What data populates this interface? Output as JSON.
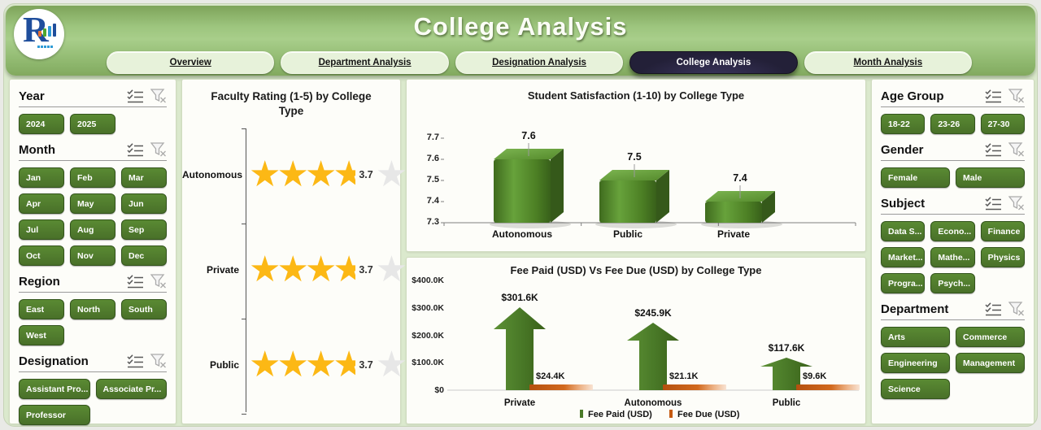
{
  "header": {
    "title": "College Analysis",
    "logo_letter": "R",
    "tabs": [
      {
        "label": "Overview",
        "active": false
      },
      {
        "label": "Department Analysis",
        "active": false
      },
      {
        "label": "Designation Analysis",
        "active": false
      },
      {
        "label": "College Analysis",
        "active": true
      },
      {
        "label": "Month Analysis",
        "active": false
      }
    ]
  },
  "filters_left": [
    {
      "title": "Year",
      "columns": 3,
      "items": [
        "2024",
        "2025"
      ]
    },
    {
      "title": "Month",
      "columns": 3,
      "items": [
        "Jan",
        "Feb",
        "Mar",
        "Apr",
        "May",
        "Jun",
        "Jul",
        "Aug",
        "Sep",
        "Oct",
        "Nov",
        "Dec"
      ]
    },
    {
      "title": "Region",
      "columns": 3,
      "items": [
        "East",
        "North",
        "South",
        "West"
      ]
    },
    {
      "title": "Designation",
      "columns": 2,
      "items": [
        "Assistant Pro...",
        "Associate Pr...",
        "Professor"
      ]
    }
  ],
  "filters_right": [
    {
      "title": "Age Group",
      "columns": 3,
      "items": [
        "18-22",
        "23-26",
        "27-30"
      ]
    },
    {
      "title": "Gender",
      "columns": 2,
      "items": [
        "Female",
        "Male"
      ]
    },
    {
      "title": "Subject",
      "columns": 3,
      "items": [
        "Data S...",
        "Econo...",
        "Finance",
        "Market...",
        "Mathe...",
        "Physics",
        "Progra...",
        "Psych..."
      ]
    },
    {
      "title": "Department",
      "columns": 2,
      "items": [
        "Arts",
        "Commerce",
        "Engineering",
        "Management",
        "Science"
      ]
    }
  ],
  "chart_data": [
    {
      "type": "rating",
      "title": "Faculty Rating (1-5) by College Type",
      "categories": [
        "Autonomous",
        "Private",
        "Public"
      ],
      "values": [
        3.7,
        3.7,
        3.7
      ],
      "max": 5,
      "star_color": "#FCB815",
      "star_empty_color": "#E7E7E7"
    },
    {
      "type": "bar",
      "title": "Student Satisfaction (1-10) by College Type",
      "categories": [
        "Autonomous",
        "Public",
        "Private"
      ],
      "values": [
        7.6,
        7.5,
        7.4
      ],
      "ylim": [
        7.3,
        7.7
      ],
      "yticks": [
        "7.3",
        "7.4",
        "7.5",
        "7.6",
        "7.7"
      ],
      "bar_color": "#4E7D26",
      "grid": false,
      "labels": [
        "7.6",
        "7.5",
        "7.4"
      ]
    },
    {
      "type": "bar",
      "title": "Fee Paid (USD) Vs Fee Due (USD) by College Type",
      "categories": [
        "Private",
        "Autonomous",
        "Public"
      ],
      "series": [
        {
          "name": "Fee Paid (USD)",
          "values": [
            301.6,
            245.9,
            117.6
          ],
          "labels": [
            "$301.6K",
            "$245.9K",
            "$117.6K"
          ],
          "color": "#4A7A28"
        },
        {
          "name": "Fee Due (USD)",
          "values": [
            24.4,
            21.1,
            9.6
          ],
          "labels": [
            "$24.4K",
            "$21.1K",
            "$9.6K"
          ],
          "color": "#C55A11"
        }
      ],
      "ylim": [
        0,
        400
      ],
      "yticks": [
        "$0",
        "$100.0K",
        "$200.0K",
        "$300.0K",
        "$400.0K"
      ],
      "legend_position": "bottom"
    }
  ],
  "colors": {
    "header_green": "#9CC47E",
    "page_bg": "#DBE9CD",
    "button_green": "#4D7A2A",
    "tab_active_bg": "#232038",
    "star_gold": "#FCB815",
    "arrow_green": "#4A7A28",
    "fee_due_orange": "#C55A11"
  }
}
